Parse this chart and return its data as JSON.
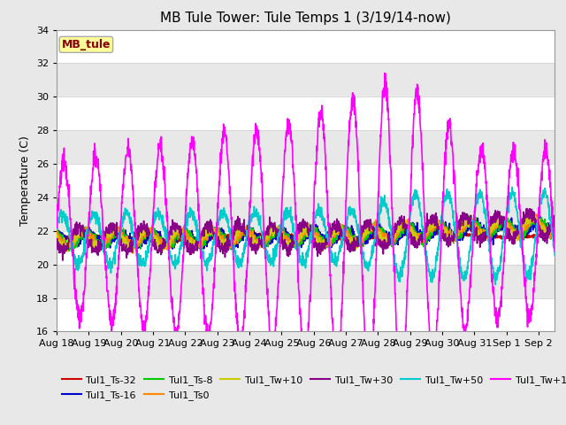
{
  "title": "MB Tule Tower: Tule Temps 1 (3/19/14-now)",
  "ylabel": "Temperature (C)",
  "ylim": [
    16,
    34
  ],
  "yticks": [
    16,
    18,
    20,
    22,
    24,
    26,
    28,
    30,
    32,
    34
  ],
  "xlim": [
    0,
    15.5
  ],
  "xlabel_ticks": [
    0,
    1,
    2,
    3,
    4,
    5,
    6,
    7,
    8,
    9,
    10,
    11,
    12,
    13,
    14,
    15
  ],
  "xlabel_labels": [
    "Aug 18",
    "Aug 19",
    "Aug 20",
    "Aug 21",
    "Aug 22",
    "Aug 23",
    "Aug 24",
    "Aug 25",
    "Aug 26",
    "Aug 27",
    "Aug 28",
    "Aug 29",
    "Aug 30",
    "Aug 31",
    "Sep 1",
    "Sep 2"
  ],
  "series_colors": {
    "Tul1_Ts-32": "#cc0000",
    "Tul1_Ts-16": "#0000cc",
    "Tul1_Ts-8": "#00cc00",
    "Tul1_Ts0": "#ff8800",
    "Tul1_Tw+10": "#cccc00",
    "Tul1_Tw+30": "#880088",
    "Tul1_Tw+50": "#00cccc",
    "Tul1_Tw+100": "#ff00ff"
  },
  "legend_label": "MB_tule",
  "legend_box_color": "#ffff99",
  "legend_text_color": "#880000",
  "background_color": "#e8e8e8",
  "title_fontsize": 11,
  "axis_fontsize": 9,
  "tick_fontsize": 8
}
